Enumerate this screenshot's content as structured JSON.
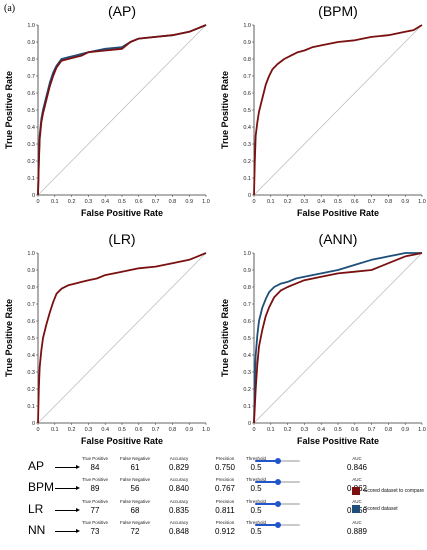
{
  "figure_label": "(a)",
  "colors": {
    "scored_to_compare": "#7a1010",
    "scored": "#1f4e79",
    "diagonal": "#bfbfbf"
  },
  "chart_data": [
    {
      "type": "line",
      "title": "(AP)",
      "xlabel": "False Positive Rate",
      "ylabel": "True Positive Rate",
      "xlim": [
        0,
        1
      ],
      "ylim": [
        0,
        1
      ],
      "ticks": [
        "0",
        "0.1",
        "0.2",
        "0.3",
        "0.4",
        "0.5",
        "0.6",
        "0.7",
        "0.8",
        "0.9",
        "1.0"
      ],
      "grid": false,
      "series": [
        {
          "color_key": "scored",
          "points": [
            [
              0,
              0
            ],
            [
              0.005,
              0.2
            ],
            [
              0.01,
              0.35
            ],
            [
              0.02,
              0.45
            ],
            [
              0.03,
              0.5
            ],
            [
              0.05,
              0.58
            ],
            [
              0.07,
              0.66
            ],
            [
              0.09,
              0.72
            ],
            [
              0.11,
              0.76
            ],
            [
              0.14,
              0.8
            ],
            [
              0.18,
              0.81
            ],
            [
              0.22,
              0.82
            ],
            [
              0.26,
              0.83
            ],
            [
              0.3,
              0.84
            ],
            [
              0.4,
              0.86
            ],
            [
              0.5,
              0.87
            ],
            [
              0.55,
              0.9
            ],
            [
              0.6,
              0.92
            ],
            [
              0.7,
              0.93
            ],
            [
              0.8,
              0.94
            ],
            [
              0.9,
              0.96
            ],
            [
              0.95,
              0.98
            ],
            [
              1,
              1
            ]
          ]
        },
        {
          "color_key": "scored_to_compare",
          "points": [
            [
              0,
              0
            ],
            [
              0.005,
              0.18
            ],
            [
              0.01,
              0.33
            ],
            [
              0.02,
              0.43
            ],
            [
              0.03,
              0.48
            ],
            [
              0.05,
              0.56
            ],
            [
              0.07,
              0.64
            ],
            [
              0.09,
              0.7
            ],
            [
              0.11,
              0.75
            ],
            [
              0.14,
              0.79
            ],
            [
              0.18,
              0.8
            ],
            [
              0.22,
              0.81
            ],
            [
              0.26,
              0.82
            ],
            [
              0.3,
              0.84
            ],
            [
              0.4,
              0.85
            ],
            [
              0.5,
              0.86
            ],
            [
              0.55,
              0.9
            ],
            [
              0.6,
              0.92
            ],
            [
              0.7,
              0.93
            ],
            [
              0.8,
              0.94
            ],
            [
              0.9,
              0.96
            ],
            [
              0.95,
              0.98
            ],
            [
              1,
              1
            ]
          ]
        }
      ]
    },
    {
      "type": "line",
      "title": "(BPM)",
      "xlabel": "False Positive Rate",
      "ylabel": "True Positive Rate",
      "xlim": [
        0,
        1
      ],
      "ylim": [
        0,
        1
      ],
      "ticks": [
        "0",
        "0.1",
        "0.2",
        "0.3",
        "0.4",
        "0.5",
        "0.6",
        "0.7",
        "0.8",
        "0.9",
        "1.0"
      ],
      "grid": false,
      "series": [
        {
          "color_key": "scored_to_compare",
          "points": [
            [
              0,
              0
            ],
            [
              0.005,
              0.2
            ],
            [
              0.01,
              0.35
            ],
            [
              0.02,
              0.43
            ],
            [
              0.03,
              0.49
            ],
            [
              0.05,
              0.57
            ],
            [
              0.07,
              0.65
            ],
            [
              0.09,
              0.7
            ],
            [
              0.11,
              0.74
            ],
            [
              0.14,
              0.77
            ],
            [
              0.18,
              0.8
            ],
            [
              0.22,
              0.82
            ],
            [
              0.26,
              0.84
            ],
            [
              0.3,
              0.85
            ],
            [
              0.35,
              0.87
            ],
            [
              0.4,
              0.88
            ],
            [
              0.5,
              0.9
            ],
            [
              0.6,
              0.91
            ],
            [
              0.7,
              0.93
            ],
            [
              0.8,
              0.94
            ],
            [
              0.9,
              0.96
            ],
            [
              0.95,
              0.97
            ],
            [
              1,
              1
            ]
          ]
        }
      ]
    },
    {
      "type": "line",
      "title": "(LR)",
      "xlabel": "False Positive Rate",
      "ylabel": "True Positive Rate",
      "xlim": [
        0,
        1
      ],
      "ylim": [
        0,
        1
      ],
      "ticks": [
        "0",
        "0.1",
        "0.2",
        "0.3",
        "0.4",
        "0.5",
        "0.6",
        "0.7",
        "0.8",
        "0.9",
        "1.0"
      ],
      "grid": false,
      "series": [
        {
          "color_key": "scored_to_compare",
          "points": [
            [
              0,
              0
            ],
            [
              0.005,
              0.2
            ],
            [
              0.01,
              0.33
            ],
            [
              0.02,
              0.43
            ],
            [
              0.03,
              0.5
            ],
            [
              0.05,
              0.58
            ],
            [
              0.07,
              0.65
            ],
            [
              0.09,
              0.71
            ],
            [
              0.11,
              0.76
            ],
            [
              0.14,
              0.79
            ],
            [
              0.18,
              0.81
            ],
            [
              0.22,
              0.82
            ],
            [
              0.26,
              0.83
            ],
            [
              0.3,
              0.84
            ],
            [
              0.35,
              0.85
            ],
            [
              0.4,
              0.87
            ],
            [
              0.5,
              0.89
            ],
            [
              0.6,
              0.91
            ],
            [
              0.7,
              0.92
            ],
            [
              0.8,
              0.94
            ],
            [
              0.9,
              0.96
            ],
            [
              0.95,
              0.98
            ],
            [
              1,
              1
            ]
          ]
        }
      ]
    },
    {
      "type": "line",
      "title": "(ANN)",
      "xlabel": "False Positive Rate",
      "ylabel": "True Positive Rate",
      "xlim": [
        0,
        1
      ],
      "ylim": [
        0,
        1
      ],
      "ticks": [
        "0",
        "0.1",
        "0.2",
        "0.3",
        "0.4",
        "0.5",
        "0.6",
        "0.7",
        "0.8",
        "0.9",
        "1.0"
      ],
      "grid": false,
      "series": [
        {
          "color_key": "scored",
          "points": [
            [
              0,
              0
            ],
            [
              0.005,
              0.25
            ],
            [
              0.01,
              0.4
            ],
            [
              0.02,
              0.52
            ],
            [
              0.03,
              0.6
            ],
            [
              0.05,
              0.68
            ],
            [
              0.07,
              0.73
            ],
            [
              0.09,
              0.77
            ],
            [
              0.12,
              0.8
            ],
            [
              0.16,
              0.82
            ],
            [
              0.2,
              0.83
            ],
            [
              0.25,
              0.85
            ],
            [
              0.3,
              0.86
            ],
            [
              0.4,
              0.88
            ],
            [
              0.5,
              0.9
            ],
            [
              0.6,
              0.93
            ],
            [
              0.7,
              0.96
            ],
            [
              0.8,
              0.98
            ],
            [
              0.85,
              0.99
            ],
            [
              0.9,
              1
            ],
            [
              1,
              1
            ]
          ]
        },
        {
          "color_key": "scored_to_compare",
          "points": [
            [
              0,
              0
            ],
            [
              0.01,
              0.2
            ],
            [
              0.02,
              0.35
            ],
            [
              0.03,
              0.45
            ],
            [
              0.05,
              0.55
            ],
            [
              0.07,
              0.63
            ],
            [
              0.09,
              0.68
            ],
            [
              0.12,
              0.74
            ],
            [
              0.16,
              0.78
            ],
            [
              0.2,
              0.8
            ],
            [
              0.25,
              0.82
            ],
            [
              0.3,
              0.84
            ],
            [
              0.4,
              0.86
            ],
            [
              0.5,
              0.88
            ],
            [
              0.6,
              0.89
            ],
            [
              0.7,
              0.9
            ],
            [
              0.75,
              0.92
            ],
            [
              0.8,
              0.94
            ],
            [
              0.85,
              0.96
            ],
            [
              0.9,
              0.98
            ],
            [
              0.95,
              0.99
            ],
            [
              1,
              1
            ]
          ]
        }
      ]
    }
  ],
  "metrics": {
    "headers": {
      "tp": "True Positive",
      "fn": "False Negative",
      "accuracy": "Accuracy",
      "precision": "Precision",
      "threshold": "Threshold",
      "auc": "AUC"
    },
    "rows": [
      {
        "model": "AP",
        "tp": "84",
        "fn": "61",
        "accuracy": "0.829",
        "precision": "0.750",
        "threshold": "0.5",
        "threshold_level": 0.5,
        "auc": "0.846"
      },
      {
        "model": "BPM",
        "tp": "89",
        "fn": "56",
        "accuracy": "0.840",
        "precision": "0.767",
        "threshold": "0.5",
        "threshold_level": 0.5,
        "auc": "0.862"
      },
      {
        "model": "LR",
        "tp": "77",
        "fn": "68",
        "accuracy": "0.835",
        "precision": "0.811",
        "threshold": "0.5",
        "threshold_level": 0.5,
        "auc": "0.856"
      },
      {
        "model": "NN",
        "tp": "73",
        "fn": "72",
        "accuracy": "0.848",
        "precision": "0.912",
        "threshold": "0.5",
        "threshold_level": 0.5,
        "auc": "0.889"
      }
    ]
  },
  "legend": [
    {
      "label": "Scored dataset to compare",
      "color_key": "scored_to_compare"
    },
    {
      "label": "Scored dataset",
      "color_key": "scored"
    }
  ]
}
